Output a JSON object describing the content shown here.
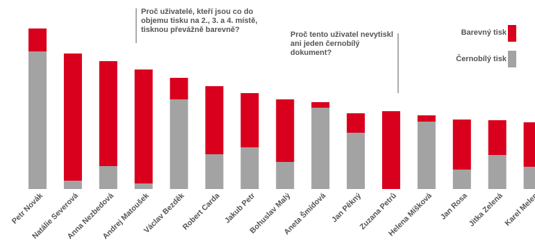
{
  "chart_data": {
    "type": "bar",
    "stacked": true,
    "categories": [
      "Petr Novák",
      "Natálie Severová",
      "Anna Nezbedová",
      "Andrej Matoušek",
      "Václav Bezděk",
      "Robert Carda",
      "Jakub Petr",
      "Bohuslav Malý",
      "Aneta Šmídová",
      "Jan Pěkný",
      "Zuzana Petrů",
      "Helena Míšková",
      "Jan Rosa",
      "Jitka Zelená",
      "Karel Melen"
    ],
    "series": [
      {
        "name": "Černobílý tisk",
        "color": "#a3a3a3",
        "values": [
          198,
          12,
          33,
          8,
          129,
          50,
          60,
          39,
          117,
          81,
          0,
          97,
          28,
          49,
          32
        ]
      },
      {
        "name": "Barevný tisk",
        "color": "#d9001d",
        "values": [
          33,
          183,
          151,
          164,
          31,
          98,
          78,
          90,
          8,
          28,
          112,
          9,
          72,
          50,
          64
        ]
      }
    ],
    "ylim": [
      0,
      240
    ],
    "grid": false,
    "axes_visible": false,
    "legend_position": "top-right",
    "annotations": [
      {
        "text": "Proč uživatelé, kteří jsou co do objemu tisku na 2., 3. a 4. místě, tisknou převážně barevně?",
        "target_categories": [
          "Natálie Severová",
          "Anna Nezbedová",
          "Andrej Matoušek"
        ]
      },
      {
        "text": "Proč tento uživatel nevytiskl ani jeden černobílý dokument?",
        "target_categories": [
          "Zuzana Petrů"
        ]
      }
    ]
  },
  "annotations": {
    "a1": "Proč uživatelé, kteří jsou co do objemu tisku na 2., 3. a 4. místě, tisknou převážně barevně?",
    "a2": "Proč tento uživatel nevytiskl ani jeden černobílý dokument?"
  },
  "legend": {
    "color_label": "Barevný tisk",
    "bw_label": "Černobílý tisk"
  }
}
